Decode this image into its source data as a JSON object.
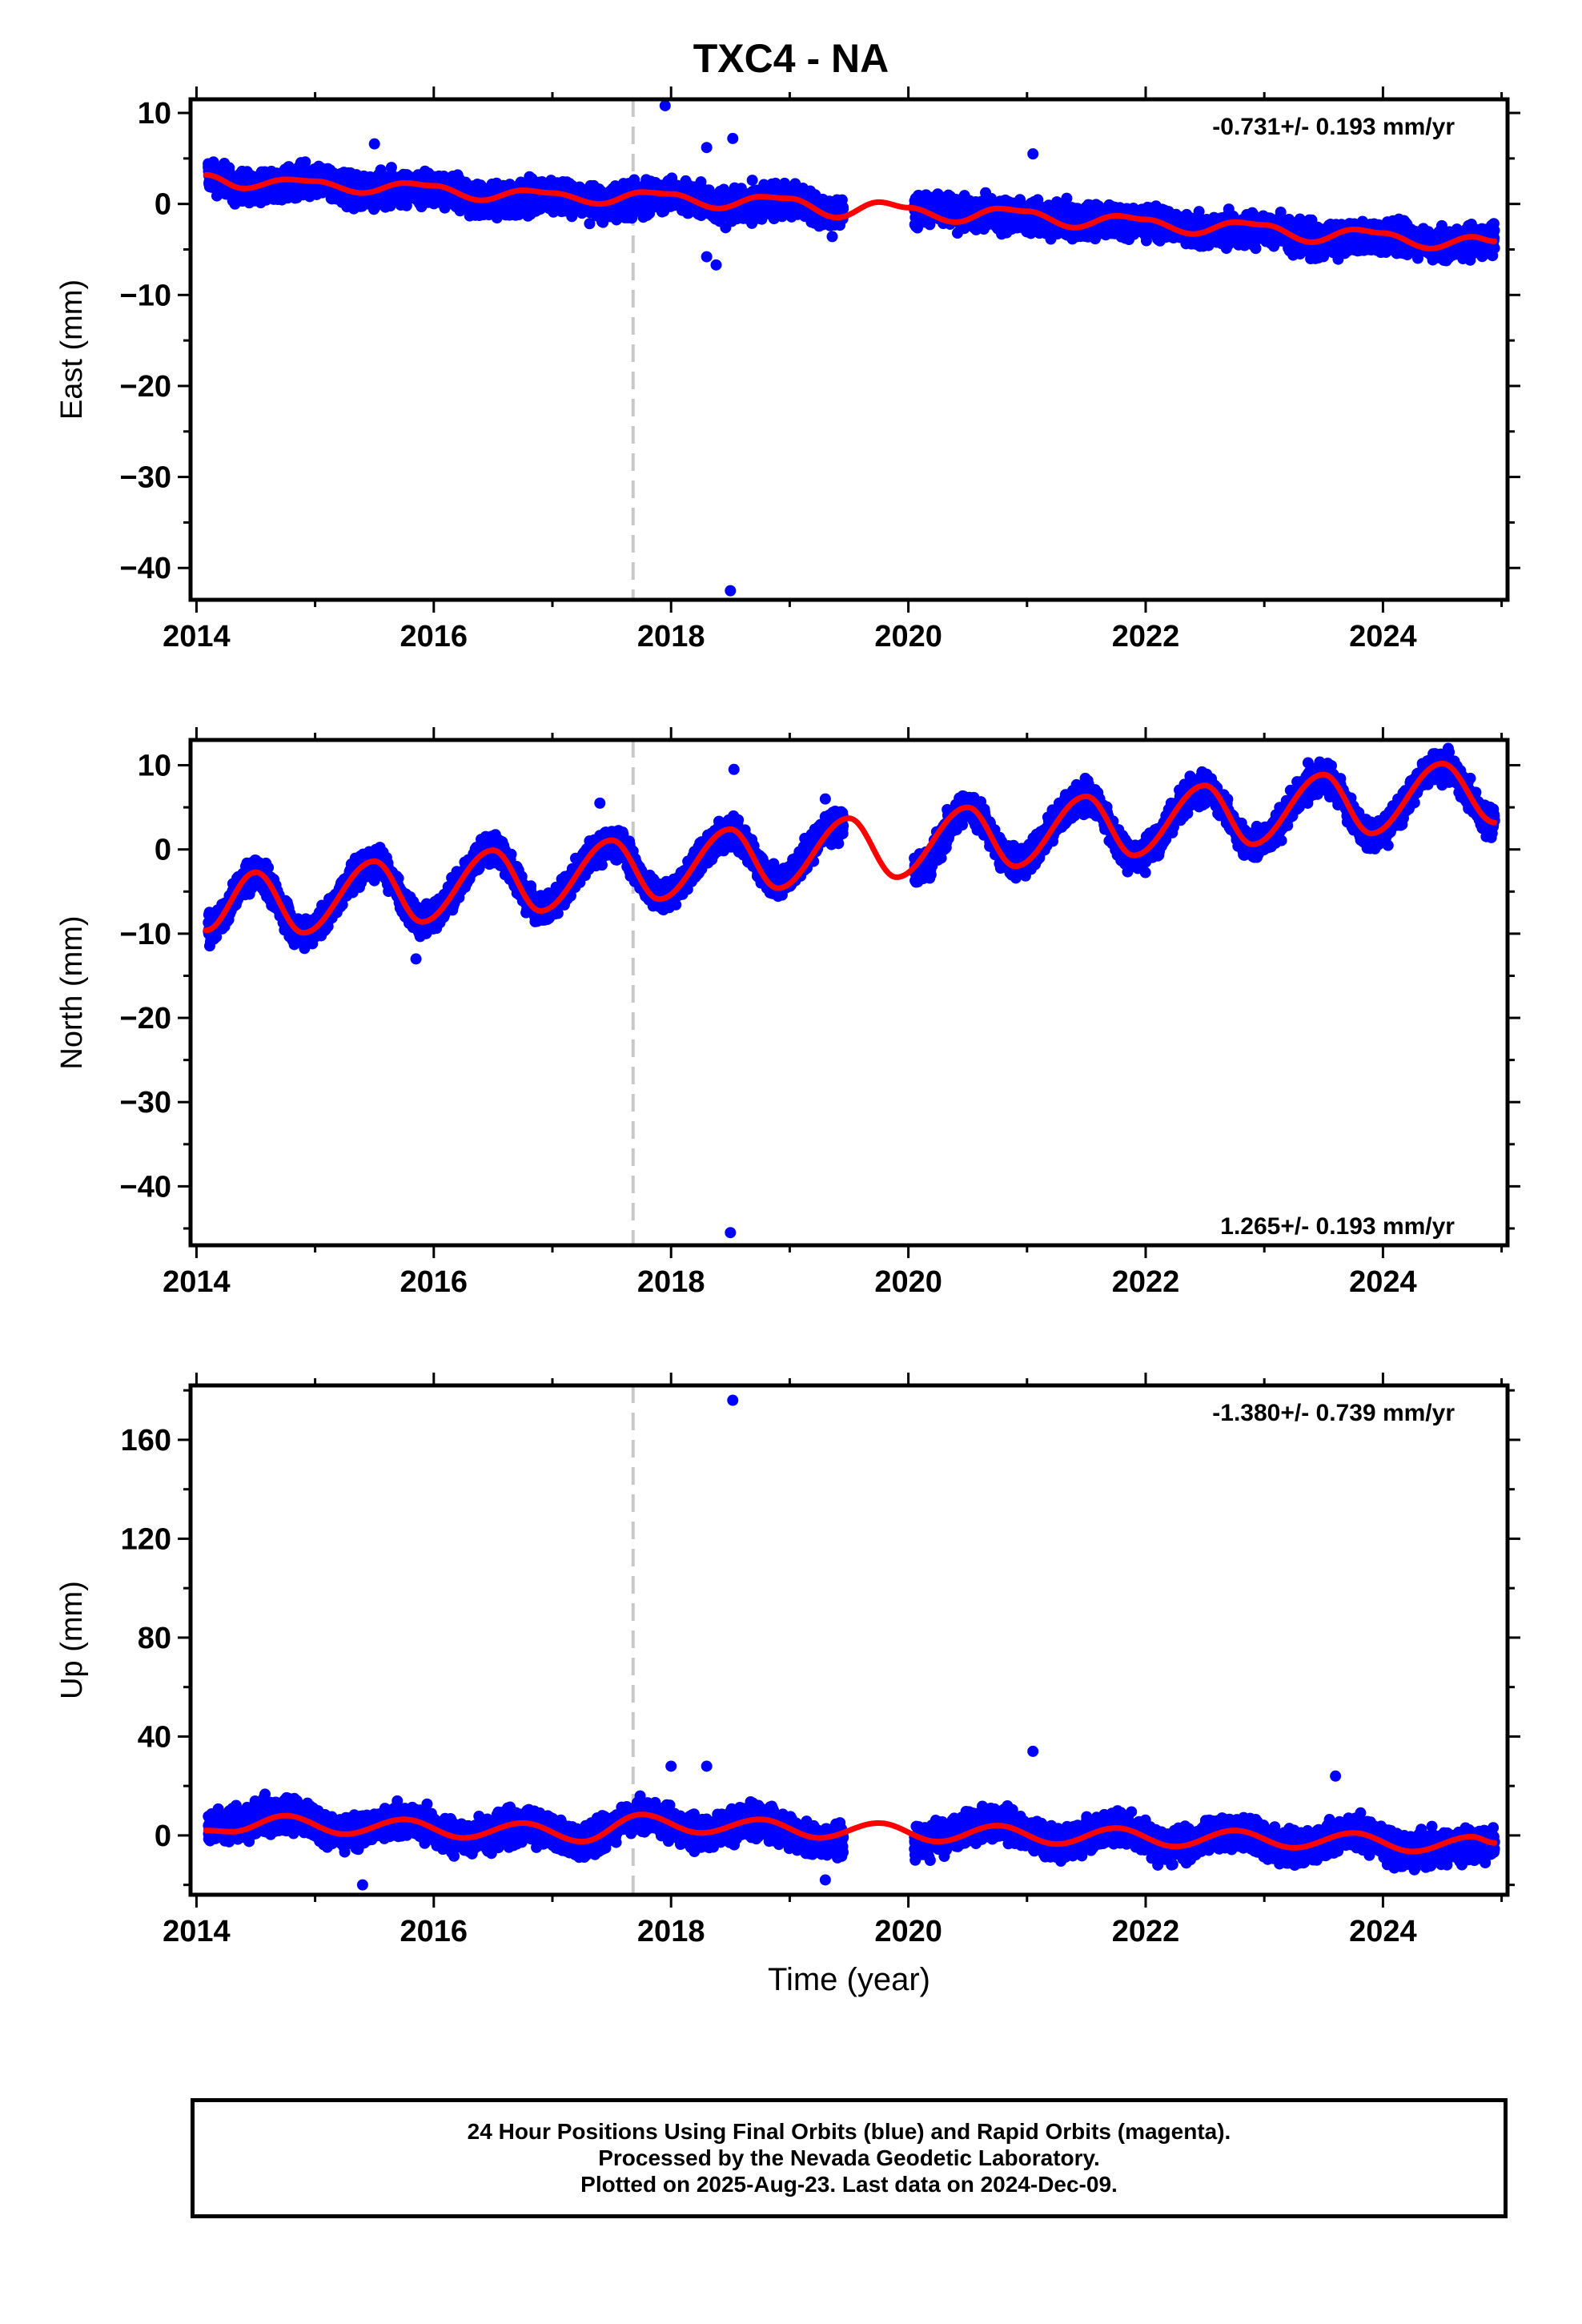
{
  "title": "TXC4 - NA",
  "xaxis_label": "Time (year)",
  "footer": {
    "line1": "24 Hour Positions Using Final Orbits (blue) and Rapid Orbits (magenta).",
    "line2": "Processed by the Nevada Geodetic Laboratory.",
    "line3": "Plotted on 2025-Aug-23. Last data on 2024-Dec-09."
  },
  "colors": {
    "data_points": "#0000ff",
    "model_fit": "#ff0000",
    "marker_line": "#c8c8c8",
    "frame": "#000000"
  },
  "chart_data": [
    {
      "type": "scatter",
      "component": "East",
      "ylabel": "East (mm)",
      "xlim": [
        2013.95,
        2025.05
      ],
      "ylim": [
        -43.5,
        11.5
      ],
      "yticks": [
        10,
        0,
        -10,
        -20,
        -30,
        -40
      ],
      "xticks": [
        2014,
        2016,
        2018,
        2020,
        2022,
        2024
      ],
      "rate_label": "-0.731+/- 0.193 mm/yr",
      "rate_position": "top-right",
      "equipment_change_year": 2017.68,
      "data_gap": [
        2019.45,
        2020.05
      ],
      "data_range": [
        2014.1,
        2024.94
      ],
      "series": [
        {
          "name": "Final Orbits",
          "marker": "dot",
          "points": [
            [
              2014.08,
              3.0
            ],
            [
              2014.5,
              1.8
            ],
            [
              2015.0,
              2.5
            ],
            [
              2015.5,
              1.5
            ],
            [
              2016.0,
              1.8
            ],
            [
              2016.5,
              0.2
            ],
            [
              2017.0,
              1.0
            ],
            [
              2017.5,
              0.0
            ],
            [
              2018.0,
              1.0
            ],
            [
              2018.5,
              -0.3
            ],
            [
              2019.0,
              0.5
            ],
            [
              2019.4,
              -1.2
            ],
            [
              2020.1,
              -0.5
            ],
            [
              2020.6,
              -1.0
            ],
            [
              2021.0,
              -1.5
            ],
            [
              2021.5,
              -2.0
            ],
            [
              2022.0,
              -2.0
            ],
            [
              2022.5,
              -3.0
            ],
            [
              2023.0,
              -2.8
            ],
            [
              2023.5,
              -4.0
            ],
            [
              2024.0,
              -3.5
            ],
            [
              2024.5,
              -4.5
            ],
            [
              2024.94,
              -4.0
            ]
          ]
        },
        {
          "name": "Outliers",
          "marker": "dot",
          "points": [
            [
              2017.95,
              10.8
            ],
            [
              2018.5,
              -42.5
            ],
            [
              2018.52,
              7.2
            ],
            [
              2018.3,
              6.2
            ],
            [
              2018.3,
              -5.8
            ],
            [
              2018.38,
              -6.7
            ],
            [
              2015.5,
              6.6
            ],
            [
              2021.05,
              5.5
            ]
          ]
        },
        {
          "name": "Model fit",
          "marker": "line",
          "points": [
            [
              2014.08,
              3.2
            ],
            [
              2014.4,
              1.7
            ],
            [
              2014.75,
              2.7
            ],
            [
              2015.0,
              2.5
            ],
            [
              2015.4,
              1.2
            ],
            [
              2015.75,
              2.3
            ],
            [
              2016.0,
              2.0
            ],
            [
              2016.4,
              0.4
            ],
            [
              2016.75,
              1.5
            ],
            [
              2017.0,
              1.2
            ],
            [
              2017.4,
              0.0
            ],
            [
              2017.75,
              1.3
            ],
            [
              2018.0,
              1.1
            ],
            [
              2018.4,
              -0.5
            ],
            [
              2018.75,
              0.8
            ],
            [
              2019.0,
              0.6
            ],
            [
              2019.4,
              -1.5
            ],
            [
              2019.75,
              0.2
            ],
            [
              2020.0,
              -0.4
            ],
            [
              2020.4,
              -2.0
            ],
            [
              2020.75,
              -0.5
            ],
            [
              2021.0,
              -0.8
            ],
            [
              2021.4,
              -2.6
            ],
            [
              2021.75,
              -1.3
            ],
            [
              2022.0,
              -1.7
            ],
            [
              2022.4,
              -3.3
            ],
            [
              2022.75,
              -2.0
            ],
            [
              2023.0,
              -2.3
            ],
            [
              2023.4,
              -4.2
            ],
            [
              2023.75,
              -2.8
            ],
            [
              2024.0,
              -3.2
            ],
            [
              2024.4,
              -4.9
            ],
            [
              2024.75,
              -3.6
            ],
            [
              2024.94,
              -4.1
            ]
          ]
        }
      ]
    },
    {
      "type": "scatter",
      "component": "North",
      "ylabel": "North (mm)",
      "xlim": [
        2013.95,
        2025.05
      ],
      "ylim": [
        -47,
        13
      ],
      "yticks": [
        10,
        0,
        -10,
        -20,
        -30,
        -40
      ],
      "xticks": [
        2014,
        2016,
        2018,
        2020,
        2022,
        2024
      ],
      "rate_label": "1.265+/- 0.193 mm/yr",
      "rate_position": "bottom-right",
      "equipment_change_year": 2017.68,
      "data_gap": [
        2019.45,
        2020.05
      ],
      "data_range": [
        2014.1,
        2024.94
      ],
      "series": [
        {
          "name": "Final Orbits",
          "marker": "dot",
          "points": [
            [
              2014.08,
              -9.5
            ],
            [
              2014.5,
              -3.0
            ],
            [
              2014.9,
              -9.8
            ],
            [
              2015.5,
              -1.5
            ],
            [
              2015.9,
              -8.5
            ],
            [
              2016.5,
              0.0
            ],
            [
              2016.9,
              -7.0
            ],
            [
              2017.5,
              1.0
            ],
            [
              2017.9,
              -5.5
            ],
            [
              2018.5,
              2.0
            ],
            [
              2018.9,
              -3.8
            ],
            [
              2019.4,
              3.0
            ],
            [
              2020.1,
              -2.0
            ],
            [
              2020.5,
              5.0
            ],
            [
              2020.9,
              -1.5
            ],
            [
              2021.5,
              6.2
            ],
            [
              2021.9,
              -0.8
            ],
            [
              2022.5,
              7.2
            ],
            [
              2022.9,
              0.6
            ],
            [
              2023.5,
              8.5
            ],
            [
              2023.9,
              1.8
            ],
            [
              2024.5,
              10.0
            ],
            [
              2024.94,
              3.2
            ]
          ]
        },
        {
          "name": "Outliers",
          "marker": "dot",
          "points": [
            [
              2018.5,
              -45.5
            ],
            [
              2018.53,
              9.5
            ],
            [
              2017.4,
              5.5
            ],
            [
              2019.3,
              6.0
            ],
            [
              2015.85,
              -13.0
            ],
            [
              2024.55,
              12.0
            ]
          ]
        },
        {
          "name": "Model fit",
          "marker": "line",
          "points": [
            [
              2014.08,
              -9.6
            ],
            [
              2014.5,
              -2.7
            ],
            [
              2014.9,
              -9.9
            ],
            [
              2015.5,
              -1.4
            ],
            [
              2015.9,
              -8.6
            ],
            [
              2016.5,
              -0.1
            ],
            [
              2016.9,
              -7.3
            ],
            [
              2017.5,
              1.1
            ],
            [
              2017.9,
              -5.9
            ],
            [
              2018.5,
              2.4
            ],
            [
              2018.9,
              -4.6
            ],
            [
              2019.5,
              3.7
            ],
            [
              2019.9,
              -3.3
            ],
            [
              2020.5,
              5.0
            ],
            [
              2020.9,
              -2.0
            ],
            [
              2021.5,
              6.3
            ],
            [
              2021.9,
              -0.7
            ],
            [
              2022.5,
              7.6
            ],
            [
              2022.9,
              0.6
            ],
            [
              2023.5,
              8.9
            ],
            [
              2023.9,
              1.9
            ],
            [
              2024.5,
              10.2
            ],
            [
              2024.94,
              3.2
            ]
          ]
        }
      ]
    },
    {
      "type": "scatter",
      "component": "Up",
      "ylabel": "Up (mm)",
      "xlim": [
        2013.95,
        2025.05
      ],
      "ylim": [
        -24,
        182
      ],
      "yticks": [
        160,
        120,
        80,
        40,
        0
      ],
      "xticks": [
        2014,
        2016,
        2018,
        2020,
        2022,
        2024
      ],
      "rate_label": "-1.380+/- 0.739 mm/yr",
      "rate_position": "top-right",
      "equipment_change_year": 2017.68,
      "data_gap": [
        2019.45,
        2020.05
      ],
      "data_range": [
        2014.1,
        2024.94
      ],
      "series": [
        {
          "name": "Final Orbits",
          "marker": "dot",
          "points": [
            [
              2014.08,
              3
            ],
            [
              2014.75,
              8
            ],
            [
              2015.25,
              1
            ],
            [
              2015.75,
              6
            ],
            [
              2016.25,
              -1
            ],
            [
              2016.75,
              4
            ],
            [
              2017.25,
              -2
            ],
            [
              2017.75,
              8
            ],
            [
              2018.25,
              1
            ],
            [
              2018.75,
              6
            ],
            [
              2019.25,
              -2
            ],
            [
              2020.1,
              -2
            ],
            [
              2020.75,
              5
            ],
            [
              2021.25,
              -3
            ],
            [
              2021.75,
              3
            ],
            [
              2022.25,
              -4
            ],
            [
              2022.75,
              2
            ],
            [
              2023.25,
              -5
            ],
            [
              2023.75,
              1
            ],
            [
              2024.25,
              -6
            ],
            [
              2024.94,
              -3
            ]
          ]
        },
        {
          "name": "Outliers",
          "marker": "dot",
          "points": [
            [
              2018.52,
              176
            ],
            [
              2021.05,
              34
            ],
            [
              2018.0,
              28
            ],
            [
              2018.3,
              28
            ],
            [
              2023.6,
              24
            ],
            [
              2015.4,
              -20
            ],
            [
              2019.3,
              -18
            ]
          ]
        },
        {
          "name": "Model fit",
          "marker": "line",
          "points": [
            [
              2014.08,
              2
            ],
            [
              2014.3,
              1.5
            ],
            [
              2014.75,
              8
            ],
            [
              2015.25,
              0.5
            ],
            [
              2015.75,
              6.5
            ],
            [
              2016.25,
              -1
            ],
            [
              2016.75,
              5
            ],
            [
              2017.25,
              -2.5
            ],
            [
              2017.75,
              8.5
            ],
            [
              2018.25,
              1
            ],
            [
              2018.75,
              6.5
            ],
            [
              2019.25,
              -1
            ],
            [
              2019.75,
              5
            ],
            [
              2020.25,
              -2.5
            ],
            [
              2020.75,
              4
            ],
            [
              2021.25,
              -3.5
            ],
            [
              2021.75,
              3
            ],
            [
              2022.25,
              -4.5
            ],
            [
              2022.75,
              2
            ],
            [
              2023.25,
              -5
            ],
            [
              2023.75,
              1
            ],
            [
              2024.25,
              -6.5
            ],
            [
              2024.75,
              -0.5
            ],
            [
              2024.94,
              -3
            ]
          ]
        }
      ]
    }
  ]
}
